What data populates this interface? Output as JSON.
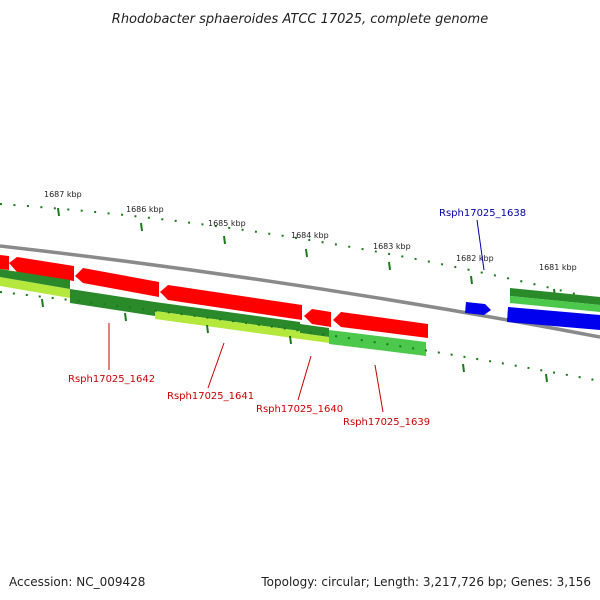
{
  "title": "Rhodobacter sphaeroides ATCC 17025, complete genome",
  "footer": {
    "accession": "Accession: NC_009428",
    "summary": "Topology: circular; Length: 3,217,726 bp; Genes: 3,156"
  },
  "colors": {
    "backbone": "#8a8a8a",
    "forward_gene": "#ff0000",
    "reverse_gene": "#0000ee",
    "cds_dark": "#2a8a2a",
    "cds_light": "#4cc84c",
    "cds_yellow": "#b4e83c",
    "tick": "#1a7a1a",
    "label_red": "#cc0000",
    "label_blue": "#0000aa"
  },
  "scale_labels": [
    "1687 kbp",
    "1686 kbp",
    "1685 kbp",
    "1684 kbp",
    "1683 kbp",
    "1682 kbp",
    "1681 kbp"
  ],
  "gene_labels": [
    {
      "text": "Rsph17025_1642",
      "strand": "reverse"
    },
    {
      "text": "Rsph17025_1641",
      "strand": "reverse"
    },
    {
      "text": "Rsph17025_1640",
      "strand": "reverse"
    },
    {
      "text": "Rsph17025_1639",
      "strand": "reverse"
    },
    {
      "text": "Rsph17025_1638",
      "strand": "forward"
    }
  ]
}
